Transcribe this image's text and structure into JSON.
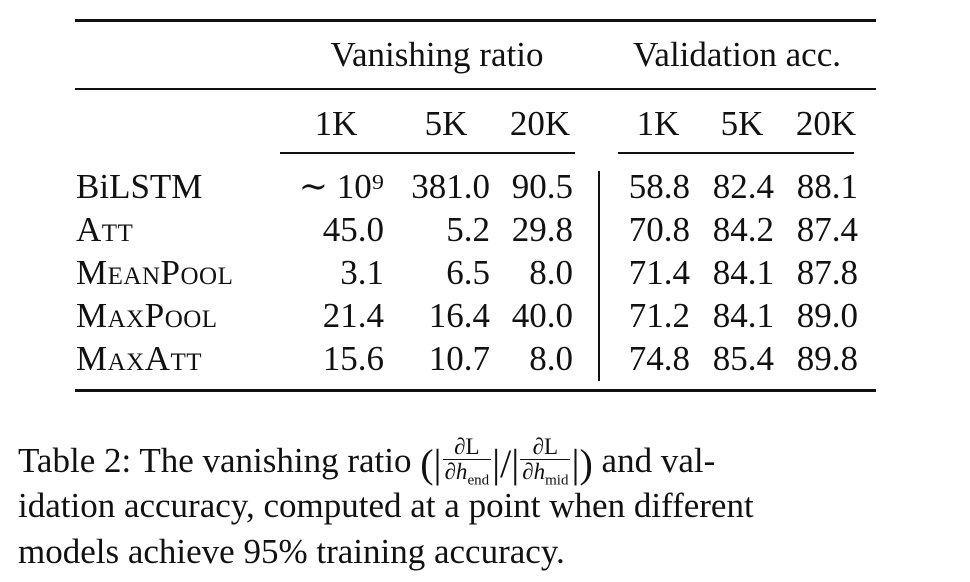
{
  "table": {
    "group_headers": [
      "Vanishing ratio",
      "Validation acc."
    ],
    "sub_headers": [
      "1K",
      "5K",
      "20K",
      "1K",
      "5K",
      "20K"
    ],
    "rows": [
      {
        "model": "BiLSTM",
        "vr": [
          "∼ 10⁹",
          "381.0",
          "90.5"
        ],
        "acc": [
          "58.8",
          "82.4",
          "88.1"
        ]
      },
      {
        "model": "Att",
        "vr": [
          "45.0",
          "5.2",
          "29.8"
        ],
        "acc": [
          "70.8",
          "84.2",
          "87.4"
        ]
      },
      {
        "model": "MeanPool",
        "vr": [
          "3.1",
          "6.5",
          "8.0"
        ],
        "acc": [
          "71.4",
          "84.1",
          "87.8"
        ]
      },
      {
        "model": "MaxPool",
        "vr": [
          "21.4",
          "16.4",
          "40.0"
        ],
        "acc": [
          "71.2",
          "84.1",
          "89.0"
        ]
      },
      {
        "model": "MaxAtt",
        "vr": [
          "15.6",
          "10.7",
          "8.0"
        ],
        "acc": [
          "74.8",
          "85.4",
          "89.8"
        ]
      }
    ]
  },
  "caption": {
    "line1_start": "Table 2: The vanishing ratio",
    "frac_num": "∂L",
    "frac_den_base": "∂h",
    "frac1_sub": "end",
    "frac2_sub": "mid",
    "line1_end": "and val-",
    "line2": "idation accuracy, computed at a point when different",
    "line3": "models achieve 95% training accuracy."
  }
}
